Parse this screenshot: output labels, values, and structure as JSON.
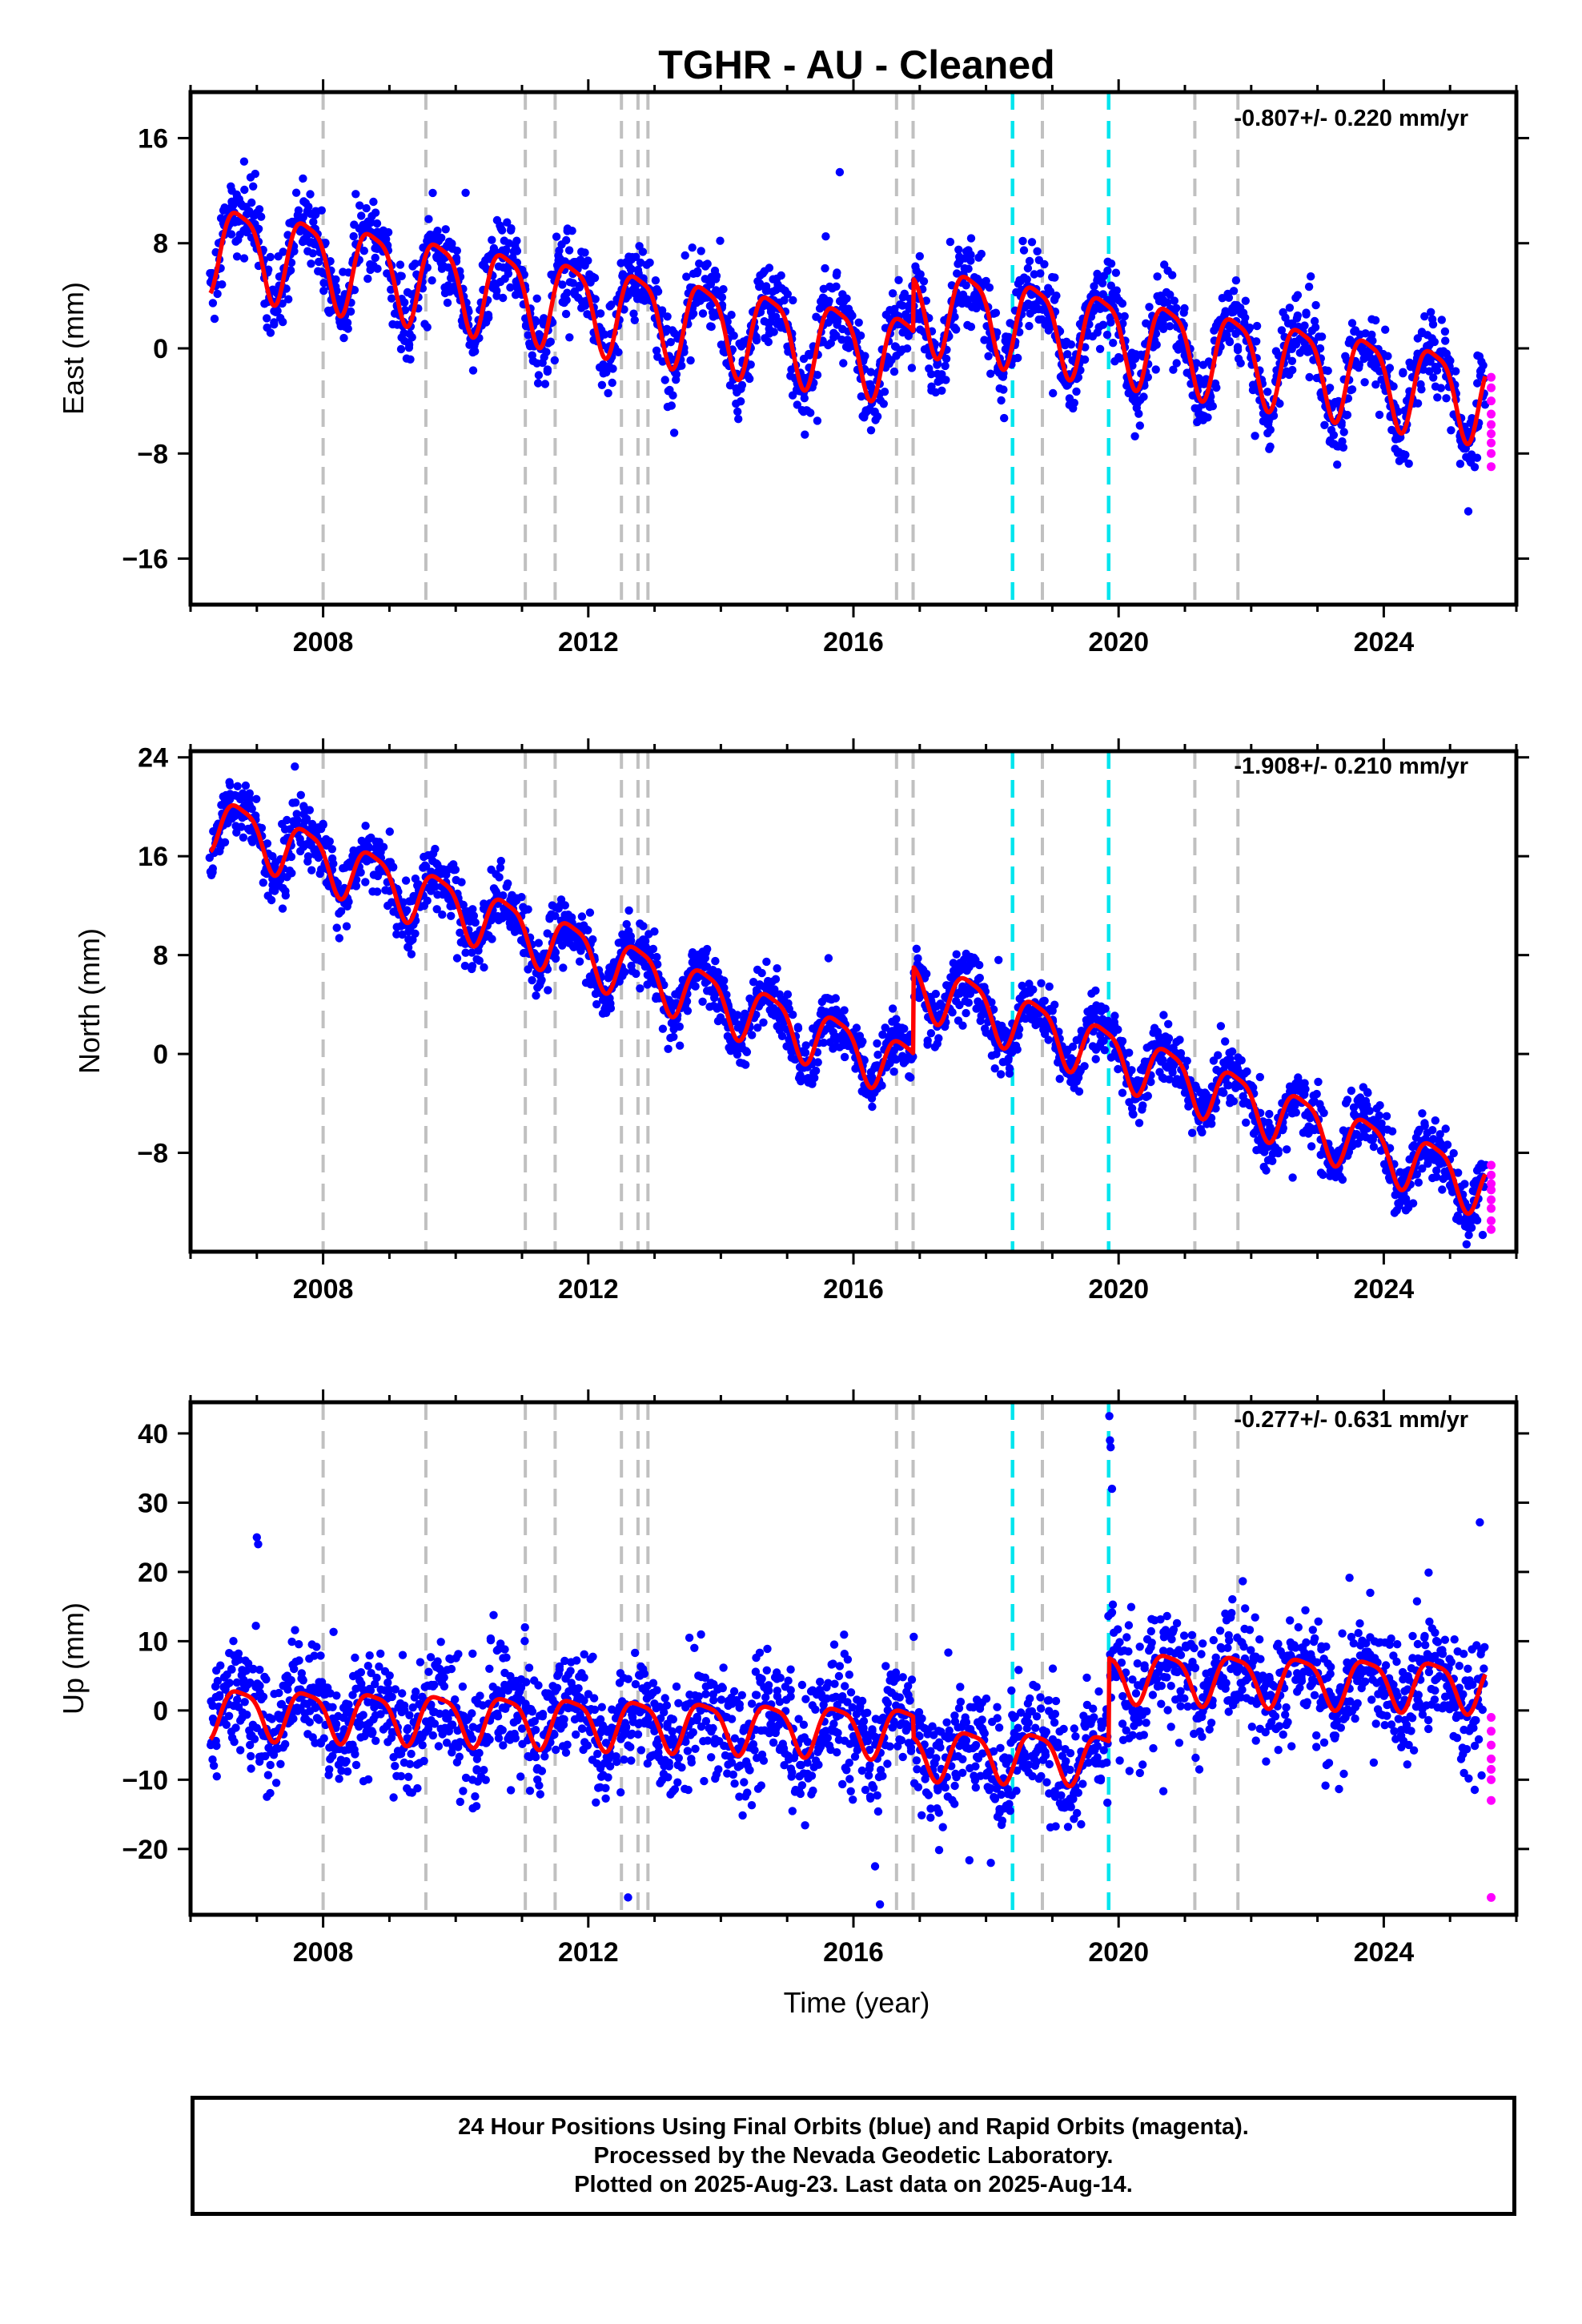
{
  "title": "TGHR  - AU - Cleaned",
  "xlabel": "Time (year)",
  "colors": {
    "final_orbits": "#0000ff",
    "rapid_orbits": "#ff00ff",
    "model_fit": "#ff0000",
    "event_gray": "#c0c0c0",
    "event_cyan": "#00e5ee"
  },
  "footer": {
    "line1": "24 Hour Positions Using Final Orbits (blue) and Rapid Orbits (magenta).",
    "line2": "Processed by the Nevada Geodetic Laboratory.",
    "line3": "Plotted on 2025-Aug-23. Last data on 2025-Aug-14."
  },
  "chart_data": [
    {
      "type": "scatter",
      "component": "east",
      "ylabel": "East (mm)",
      "rate_text": "-0.807+/- 0.220 mm/yr",
      "xlim": [
        2006.0,
        2026.0
      ],
      "ylim": [
        -19.5,
        19.5
      ],
      "x_ticks": [
        2008,
        2012,
        2016,
        2020,
        2024
      ],
      "y_ticks": [
        16,
        8,
        0,
        -8,
        -16
      ],
      "y_tick_labels": [
        "16",
        "8",
        "0",
        "−8",
        "−16"
      ],
      "data_start": 2006.3,
      "data_end": 2025.53,
      "trend": {
        "ref_year": 2006.3,
        "value_at_ref": 8.0,
        "rate": -0.807
      },
      "annual_amplitude": 3.2,
      "scatter_sigma": 1.5,
      "offsets": [
        {
          "year": 2016.9,
          "step": 4.0
        }
      ],
      "gray_events": [
        2008.0,
        2009.55,
        2011.05,
        2011.5,
        2012.5,
        2012.75,
        2012.9,
        2016.65,
        2016.9,
        2018.85,
        2021.15,
        2021.8
      ],
      "cyan_events": [
        2018.4,
        2019.85
      ],
      "rapid_points": [
        -2.2,
        -3.0,
        -4.0,
        -5.0,
        -5.8,
        -6.5,
        -7.2,
        -8.0,
        -9.0
      ]
    },
    {
      "type": "scatter",
      "component": "north",
      "ylabel": "North (mm)",
      "rate_text": "-1.908+/- 0.210 mm/yr",
      "xlim": [
        2006.0,
        2026.0
      ],
      "ylim": [
        -16.0,
        24.5
      ],
      "x_ticks": [
        2008,
        2012,
        2016,
        2020,
        2024
      ],
      "y_ticks": [
        24,
        16,
        8,
        0,
        -8
      ],
      "y_tick_labels": [
        "24",
        "16",
        "8",
        "0",
        "−8"
      ],
      "data_start": 2006.3,
      "data_end": 2025.53,
      "trend": {
        "ref_year": 2006.3,
        "value_at_ref": 19.0,
        "rate": -1.908
      },
      "annual_amplitude": 2.2,
      "scatter_sigma": 1.2,
      "offsets": [
        {
          "year": 2016.9,
          "step": 7.0
        }
      ],
      "gray_events": [
        2008.0,
        2009.55,
        2011.05,
        2011.5,
        2012.5,
        2012.75,
        2012.9,
        2016.65,
        2016.9,
        2018.85,
        2021.15,
        2021.8
      ],
      "cyan_events": [
        2018.4,
        2019.85
      ],
      "rapid_points": [
        -9.0,
        -9.8,
        -10.5,
        -11.0,
        -11.8,
        -12.5,
        -13.5,
        -14.2
      ]
    },
    {
      "type": "scatter",
      "component": "up",
      "ylabel": "Up (mm)",
      "rate_text": "-0.277+/- 0.631 mm/yr",
      "xlim": [
        2006.0,
        2026.0
      ],
      "ylim": [
        -29.5,
        44.5
      ],
      "x_ticks": [
        2008,
        2012,
        2016,
        2020,
        2024
      ],
      "y_ticks": [
        40,
        30,
        20,
        10,
        0,
        -10,
        -20
      ],
      "y_tick_labels": [
        "40",
        "30",
        "20",
        "10",
        "0",
        "−10",
        "−20"
      ],
      "data_start": 2006.3,
      "data_end": 2025.53,
      "trend": {
        "ref_year": 2006.3,
        "value_at_ref": 0.0,
        "rate": -0.277
      },
      "annual_amplitude": 3.5,
      "scatter_sigma": 4.2,
      "offsets": [
        {
          "year": 2016.9,
          "step": -3.0
        },
        {
          "year": 2019.85,
          "step": 12.0
        }
      ],
      "gray_events": [
        2008.0,
        2009.55,
        2011.05,
        2011.5,
        2012.5,
        2012.75,
        2012.9,
        2016.65,
        2016.9,
        2018.85,
        2021.15,
        2021.8
      ],
      "cyan_events": [
        2018.4,
        2019.85
      ],
      "rapid_points": [
        -1.0,
        -3.0,
        -5.0,
        -7.0,
        -8.5,
        -10.0,
        -13.0,
        -27.0
      ],
      "outliers": [
        [
          2007.0,
          25.0
        ],
        [
          2007.02,
          24.0
        ],
        [
          2019.86,
          42.5
        ],
        [
          2019.87,
          39.0
        ],
        [
          2019.88,
          38.0
        ],
        [
          2019.9,
          32.0
        ],
        [
          2012.6,
          -27.0
        ],
        [
          2016.4,
          -28.0
        ]
      ]
    }
  ]
}
